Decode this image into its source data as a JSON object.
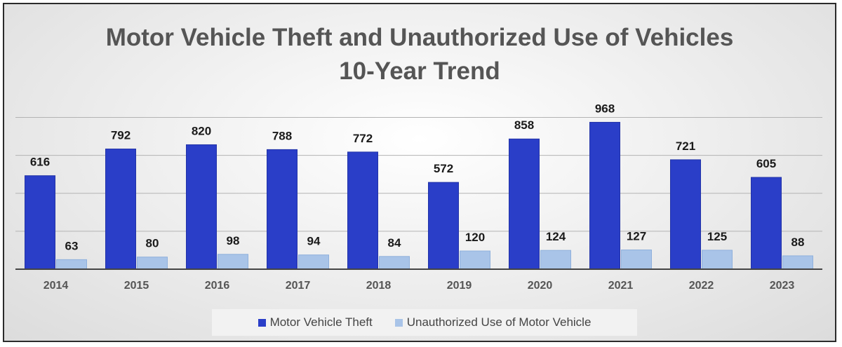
{
  "chart_data": {
    "type": "bar",
    "title": "Motor Vehicle Theft and Unauthorized Use of Vehicles",
    "subtitle": "10-Year Trend",
    "categories": [
      "2014",
      "2015",
      "2016",
      "2017",
      "2018",
      "2019",
      "2020",
      "2021",
      "2022",
      "2023"
    ],
    "series": [
      {
        "name": "Motor Vehicle Theft",
        "color": "#2a3ec8",
        "values": [
          616,
          792,
          820,
          788,
          772,
          572,
          858,
          968,
          721,
          605
        ]
      },
      {
        "name": "Unauthorized Use of Motor Vehicle",
        "color": "#a9c4e8",
        "values": [
          63,
          80,
          98,
          94,
          84,
          120,
          124,
          127,
          125,
          88
        ]
      }
    ],
    "xlabel": "",
    "ylabel": "",
    "ylim": [
      0,
      1000
    ],
    "grid": true,
    "legend": "bottom"
  }
}
